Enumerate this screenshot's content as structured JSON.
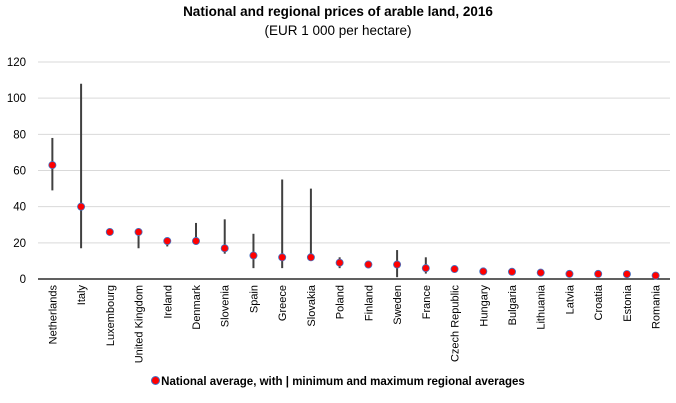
{
  "chart_data": {
    "type": "scatter",
    "subtype": "range-dot",
    "title": "National and regional prices of arable land, 2016",
    "subtitle": "(EUR 1 000 per hectare)",
    "xlabel": "",
    "ylabel": "",
    "ylim": [
      0,
      120
    ],
    "yticks": [
      0,
      20,
      40,
      60,
      80,
      100,
      120
    ],
    "grid": true,
    "legend": {
      "position": "bottom",
      "label": "National average, with | minimum and maximum regional averages"
    },
    "colors": {
      "marker_fill": "#ff0000",
      "marker_edge": "#4472c4",
      "range_line": "#404040",
      "grid": "#d9d9d9",
      "axis": "#000000"
    },
    "categories": [
      "Netherlands",
      "Italy",
      "Luxembourg",
      "United Kingdom",
      "Ireland",
      "Denmark",
      "Slovenia",
      "Spain",
      "Greece",
      "Slovakia",
      "Poland",
      "Finland",
      "Sweden",
      "France",
      "Czech Republic",
      "Hungary",
      "Bulgaria",
      "Lithuania",
      "Latvia",
      "Croatia",
      "Estonia",
      "Romania"
    ],
    "series": [
      {
        "name": "National average",
        "values": [
          63,
          40,
          26,
          26,
          21,
          21,
          17,
          13,
          12,
          12,
          9,
          8,
          8,
          6,
          5.5,
          4.2,
          4,
          3.5,
          2.8,
          2.8,
          2.7,
          1.9
        ]
      },
      {
        "name": "Minimum regional average",
        "values": [
          49,
          17,
          null,
          17,
          18,
          19,
          14,
          6,
          6,
          11,
          6,
          6,
          1,
          3,
          null,
          null,
          null,
          null,
          null,
          null,
          null,
          null
        ]
      },
      {
        "name": "Maximum regional average",
        "values": [
          78,
          108,
          null,
          28,
          22,
          31,
          33,
          25,
          55,
          50,
          12,
          10,
          16,
          12,
          null,
          null,
          null,
          null,
          null,
          null,
          null,
          null
        ]
      }
    ]
  }
}
